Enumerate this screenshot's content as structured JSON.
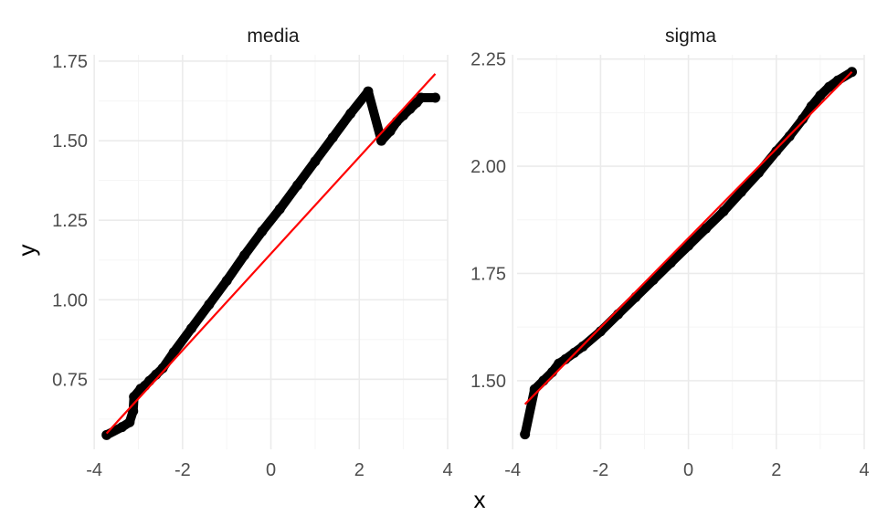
{
  "figure": {
    "xlabel": "x",
    "ylabel": "y"
  },
  "colors": {
    "points": "#000000",
    "reference_line": "#ff0000",
    "grid_major": "#ebebeb",
    "grid_minor": "#f5f5f5"
  },
  "chart_data": [
    {
      "type": "scatter",
      "title": "media",
      "xlabel": "x",
      "ylabel": "y",
      "xlim": [
        -3.9,
        4.0
      ],
      "ylim": [
        0.53,
        1.77
      ],
      "xticks": [
        -4,
        -2,
        0,
        2,
        4
      ],
      "xtick_labels": [
        "-4",
        "-2",
        "0",
        "2",
        "4"
      ],
      "yticks": [
        0.75,
        1.0,
        1.25,
        1.5,
        1.75
      ],
      "ytick_labels": [
        "0.75",
        "1.00",
        "1.25",
        "1.50",
        "1.75"
      ],
      "grid": true,
      "series": [
        {
          "values_x": [
            -3.72,
            -3.37,
            -3.2,
            -3.12,
            -3.1,
            -2.95,
            -2.85,
            -2.75,
            -2.6,
            -2.45,
            -2.2,
            -1.8,
            -1.4,
            -1.0,
            -0.6,
            -0.2,
            0.2,
            0.6,
            1.0,
            1.4,
            1.8,
            2.2,
            2.5,
            2.7,
            2.85,
            3.0,
            3.15,
            3.3,
            3.4,
            3.72
          ],
          "values_y": [
            0.575,
            0.6,
            0.615,
            0.65,
            0.695,
            0.72,
            0.73,
            0.745,
            0.765,
            0.785,
            0.835,
            0.91,
            0.985,
            1.06,
            1.14,
            1.215,
            1.285,
            1.36,
            1.435,
            1.51,
            1.585,
            1.655,
            1.5,
            1.53,
            1.56,
            1.58,
            1.6,
            1.62,
            1.635,
            1.635
          ]
        }
      ],
      "reference_line": {
        "x": [
          -3.72,
          3.72
        ],
        "y": [
          0.58,
          1.71
        ]
      }
    },
    {
      "type": "scatter",
      "title": "sigma",
      "xlabel": "x",
      "ylabel": "y",
      "xlim": [
        -3.9,
        4.0
      ],
      "ylim": [
        1.34,
        2.26
      ],
      "xticks": [
        -4,
        -2,
        0,
        2,
        4
      ],
      "xtick_labels": [
        "-4",
        "-2",
        "0",
        "2",
        "4"
      ],
      "yticks": [
        1.5,
        1.75,
        2.0,
        2.25
      ],
      "ytick_labels": [
        "1.50",
        "1.75",
        "2.00",
        "2.25"
      ],
      "grid": true,
      "series": [
        {
          "values_x": [
            -3.72,
            -3.5,
            -3.3,
            -3.1,
            -2.95,
            -2.8,
            -2.6,
            -2.4,
            -2.0,
            -1.6,
            -1.2,
            -0.8,
            -0.4,
            0.0,
            0.4,
            0.8,
            1.2,
            1.6,
            2.0,
            2.3,
            2.6,
            2.8,
            3.0,
            3.2,
            3.4,
            3.72
          ],
          "values_y": [
            1.375,
            1.48,
            1.5,
            1.52,
            1.54,
            1.55,
            1.565,
            1.58,
            1.615,
            1.655,
            1.695,
            1.735,
            1.775,
            1.815,
            1.855,
            1.895,
            1.94,
            1.985,
            2.035,
            2.07,
            2.11,
            2.14,
            2.165,
            2.185,
            2.2,
            2.22
          ]
        }
      ],
      "reference_line": {
        "x": [
          -3.72,
          3.72
        ],
        "y": [
          1.445,
          2.22
        ]
      }
    }
  ]
}
